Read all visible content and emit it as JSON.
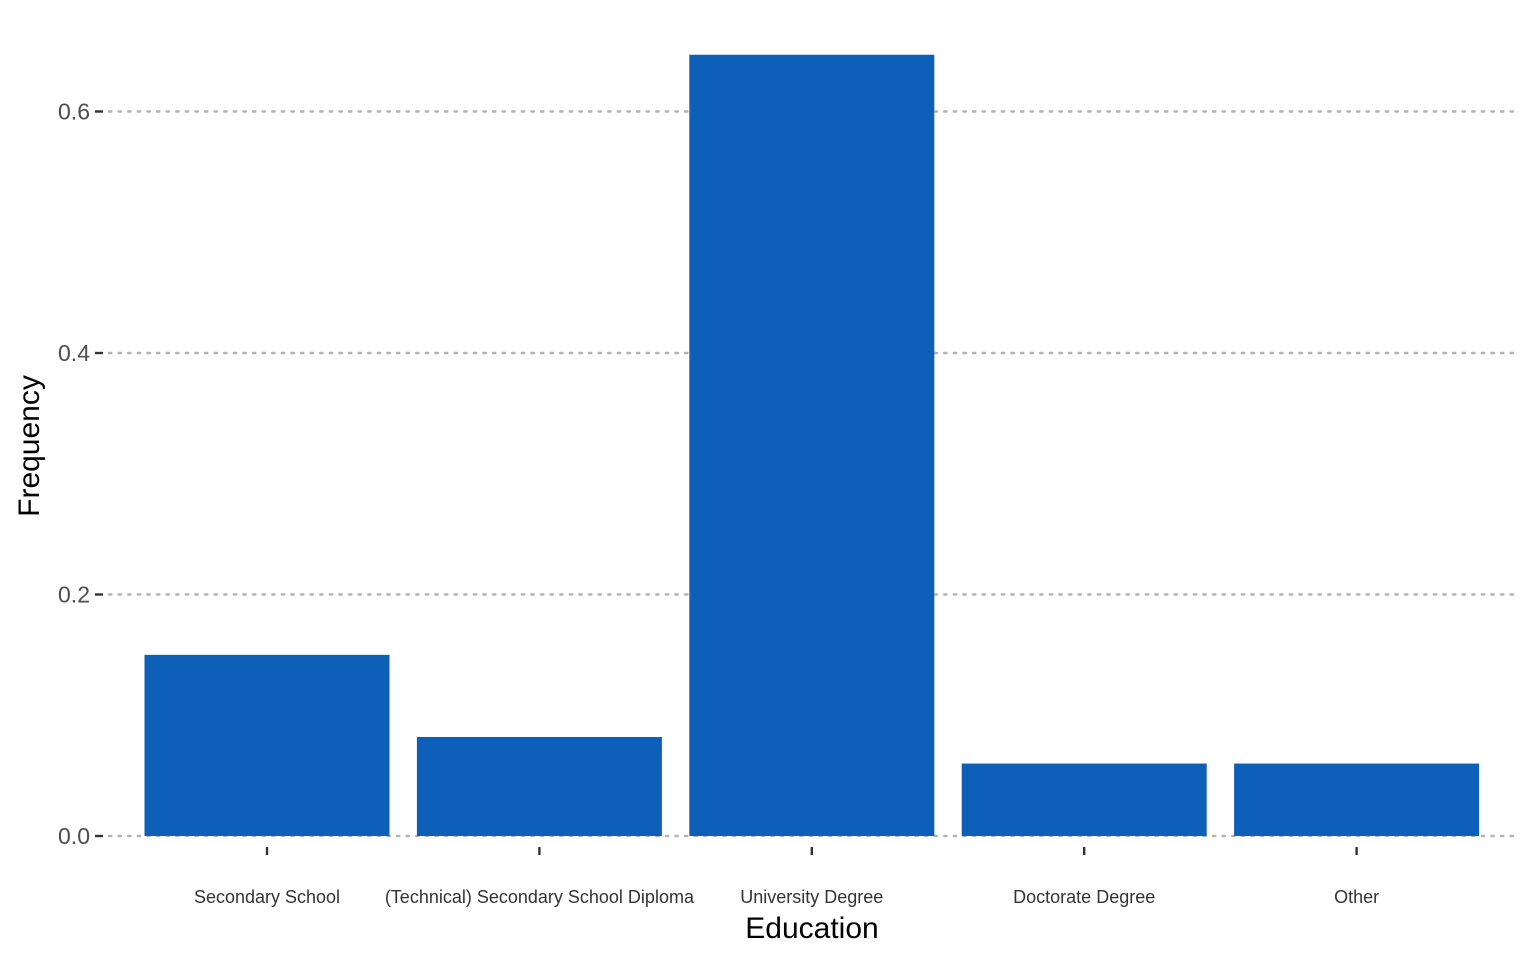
{
  "chart_data": {
    "type": "bar",
    "title": "",
    "xlabel": "Education",
    "ylabel": "Frequency",
    "categories": [
      "Secondary School",
      "(Technical) Secondary School Diploma",
      "University Degree",
      "Doctorate Degree",
      "Other"
    ],
    "values": [
      0.15,
      0.082,
      0.647,
      0.06,
      0.06
    ],
    "ylim": [
      0,
      0.65
    ],
    "yticks": [
      0.0,
      0.2,
      0.4,
      0.6
    ],
    "ytick_labels": [
      "0.0",
      "0.2",
      "0.4",
      "0.6"
    ],
    "grid": "horizontal dotted",
    "legend": "none",
    "bar_color": "#0e5fb8"
  }
}
